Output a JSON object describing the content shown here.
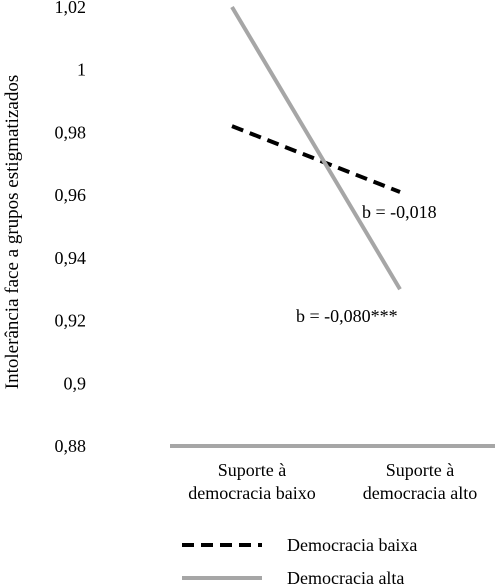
{
  "chart_data": {
    "type": "line",
    "ylabel": "Intolerância face a grupos estigmatizados",
    "xlabel": "",
    "ylim": [
      0.88,
      1.02
    ],
    "y_ticks": [
      "0,88",
      "0,9",
      "0,92",
      "0,94",
      "0,96",
      "0,98",
      "1",
      "1,02"
    ],
    "y_tick_values": [
      0.88,
      0.9,
      0.92,
      0.94,
      0.96,
      0.98,
      1.0,
      1.02
    ],
    "categories": [
      [
        "Suporte à",
        "democracia baixo"
      ],
      [
        "Suporte à",
        "democracia alto"
      ]
    ],
    "series": [
      {
        "name": "Democracia baixa",
        "values": [
          0.982,
          0.961
        ],
        "style": "dashed",
        "color": "#000000"
      },
      {
        "name": "Democracia alta",
        "values": [
          1.02,
          0.93
        ],
        "style": "solid",
        "color": "#a6a6a6"
      }
    ],
    "annotations": [
      {
        "text": "b = -0,018",
        "series": "Democracia baixa"
      },
      {
        "text": "b = -0,080***",
        "series": "Democracia alta"
      }
    ],
    "grid": false,
    "legend_position": "bottom",
    "axis_color": "#a6a6a6"
  }
}
